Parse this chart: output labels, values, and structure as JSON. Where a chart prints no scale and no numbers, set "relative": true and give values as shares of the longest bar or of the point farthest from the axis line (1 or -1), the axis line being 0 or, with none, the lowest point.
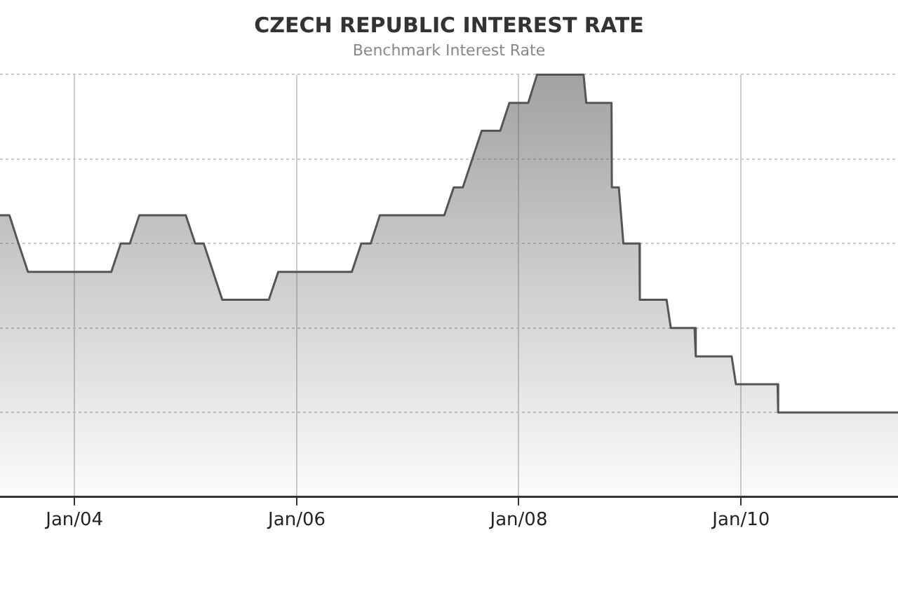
{
  "chart_data": {
    "type": "area",
    "title": "CZECH REPUBLIC INTEREST RATE",
    "subtitle": "Benchmark Interest Rate",
    "relative": true,
    "grid": true,
    "marker": "none",
    "x": [
      "2003-05",
      "2003-06",
      "2003-07",
      "2003-08",
      "2004-05",
      "2004-06",
      "2004-07",
      "2004-08",
      "2005-01",
      "2005-02",
      "2005-03",
      "2005-05",
      "2005-10",
      "2005-11",
      "2006-07",
      "2006-08",
      "2006-09",
      "2006-10",
      "2007-05",
      "2007-06",
      "2007-07",
      "2007-09",
      "2007-11",
      "2007-12",
      "2008-02",
      "2008-03",
      "2008-08-01",
      "2008-08-10",
      "2008-11-01",
      "2008-11-02",
      "2008-11-25",
      "2008-12-10",
      "2009-02-01",
      "2009-02-02",
      "2009-05",
      "2009-05-15",
      "2009-08",
      "2009-08-05",
      "2009-12",
      "2009-12-15",
      "2010-05",
      "2010-05-03",
      "2011-06"
    ],
    "series": [
      {
        "color": "#555555",
        "values": [
          0.667,
          0.667,
          0.6,
          0.533,
          0.533,
          0.6,
          0.6,
          0.667,
          0.667,
          0.6,
          0.6,
          0.467,
          0.467,
          0.533,
          0.533,
          0.6,
          0.6,
          0.667,
          0.667,
          0.733,
          0.733,
          0.867,
          0.867,
          0.933,
          0.933,
          1,
          1,
          0.933,
          0.933,
          0.733,
          0.733,
          0.6,
          0.6,
          0.467,
          0.467,
          0.4,
          0.4,
          0.333,
          0.333,
          0.267,
          0.267,
          0.2,
          0.2
        ]
      }
    ],
    "xlim": [
      "2003-05",
      "2011-06"
    ],
    "xticks": [
      {
        "value": "2004-01",
        "label": "Jan/04"
      },
      {
        "value": "2006-01",
        "label": "Jan/06"
      },
      {
        "value": "2008-01",
        "label": "Jan/08"
      },
      {
        "value": "2010-01",
        "label": "Jan/10"
      }
    ]
  }
}
